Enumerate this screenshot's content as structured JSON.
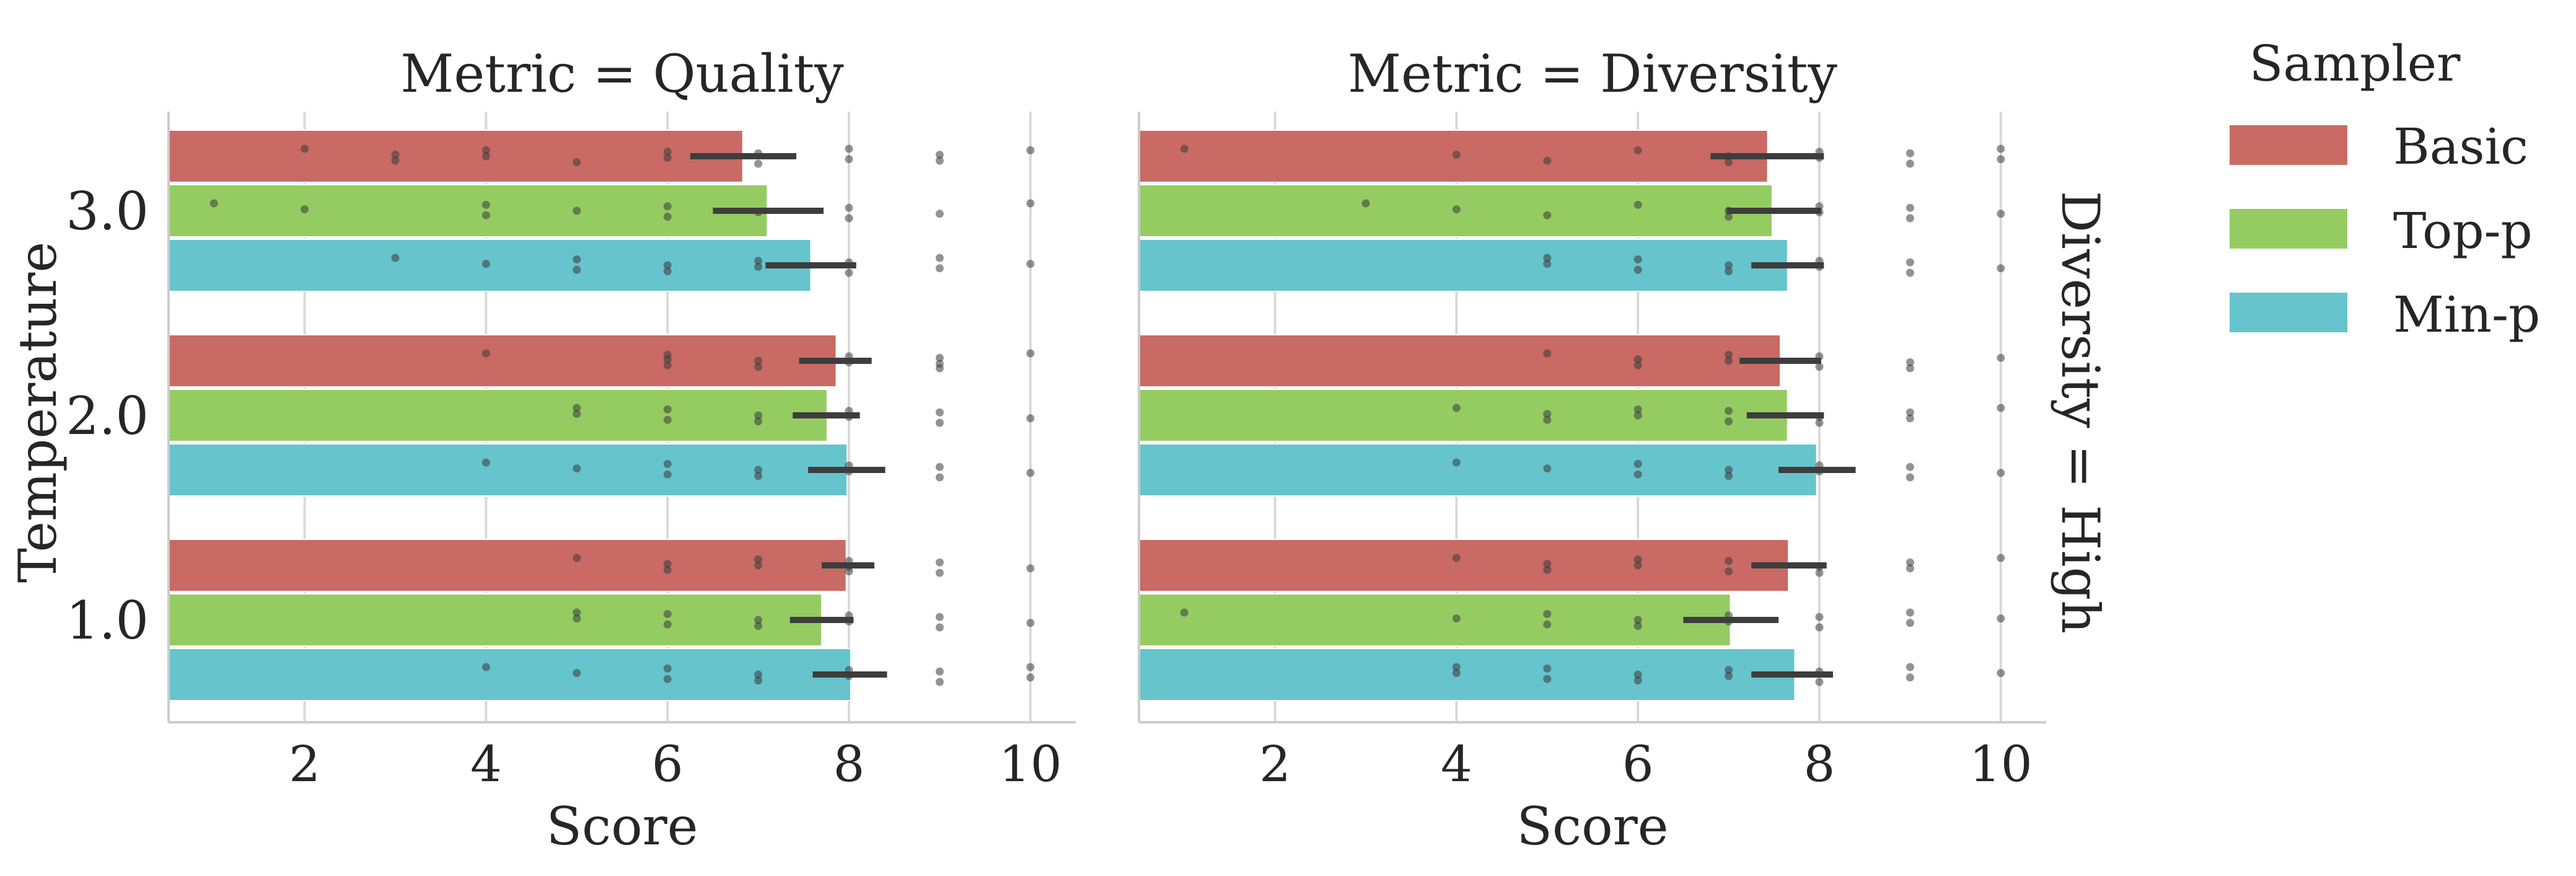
{
  "figure": {
    "row_facet_label": "Diversity = High",
    "legend": {
      "title": "Sampler",
      "entries": [
        "Basic",
        "Top-p",
        "Min-p"
      ],
      "placement": "right"
    },
    "colors": {
      "Basic": "#c96a64",
      "Top-p": "#94cc62",
      "Min-p": "#66c4cc"
    },
    "ylabel": "Temperature"
  },
  "chart_data": [
    {
      "type": "bar",
      "orientation": "horizontal",
      "title": "Metric = Quality",
      "xlabel": "Score",
      "ylabel": "Temperature",
      "xlim": [
        0.5,
        10.5
      ],
      "xticks": [
        "2",
        "4",
        "6",
        "8",
        "10"
      ],
      "categories": [
        "3.0",
        "2.0",
        "1.0"
      ],
      "grid": "vertical",
      "series": [
        {
          "name": "Basic",
          "values": [
            6.83,
            7.86,
            7.97
          ],
          "ci": [
            [
              6.25,
              7.42
            ],
            [
              7.45,
              8.25
            ],
            [
              7.7,
              8.28
            ]
          ],
          "points": [
            [
              2,
              3,
              3,
              4,
              4,
              5,
              6,
              6,
              7,
              7,
              8,
              8,
              9,
              9,
              10
            ],
            [
              4,
              6,
              6,
              6,
              7,
              7,
              8,
              8,
              9,
              9,
              9,
              10
            ],
            [
              5,
              6,
              6,
              7,
              7,
              8,
              8,
              8,
              9,
              9,
              10
            ]
          ]
        },
        {
          "name": "Top-p",
          "values": [
            7.1,
            7.76,
            7.7
          ],
          "ci": [
            [
              6.5,
              7.72
            ],
            [
              7.38,
              8.12
            ],
            [
              7.35,
              8.05
            ]
          ],
          "points": [
            [
              1,
              2,
              4,
              4,
              5,
              6,
              6,
              7,
              8,
              8,
              9,
              10
            ],
            [
              5,
              5,
              6,
              6,
              7,
              7,
              8,
              8,
              9,
              9,
              10
            ],
            [
              5,
              5,
              6,
              6,
              7,
              7,
              8,
              8,
              9,
              9,
              10
            ]
          ]
        },
        {
          "name": "Min-p",
          "values": [
            7.58,
            7.98,
            8.02
          ],
          "ci": [
            [
              7.08,
              8.08
            ],
            [
              7.55,
              8.4
            ],
            [
              7.6,
              8.42
            ]
          ],
          "points": [
            [
              3,
              4,
              5,
              5,
              6,
              6,
              7,
              7,
              8,
              8,
              9,
              9,
              10
            ],
            [
              4,
              5,
              6,
              6,
              7,
              7,
              8,
              8,
              9,
              9,
              10
            ],
            [
              4,
              5,
              6,
              6,
              7,
              7,
              8,
              8,
              9,
              9,
              10,
              10
            ]
          ]
        }
      ]
    },
    {
      "type": "bar",
      "orientation": "horizontal",
      "title": "Metric = Diversity",
      "xlabel": "Score",
      "ylabel": "",
      "xlim": [
        0.5,
        10.5
      ],
      "xticks": [
        "2",
        "4",
        "6",
        "8",
        "10"
      ],
      "categories": [
        "3.0",
        "2.0",
        "1.0"
      ],
      "grid": "vertical",
      "series": [
        {
          "name": "Basic",
          "values": [
            7.43,
            7.57,
            7.66
          ],
          "ci": [
            [
              6.8,
              8.05
            ],
            [
              7.12,
              8.02
            ],
            [
              7.25,
              8.08
            ]
          ],
          "points": [
            [
              1,
              4,
              5,
              6,
              7,
              7,
              8,
              8,
              9,
              9,
              10,
              10
            ],
            [
              5,
              6,
              6,
              7,
              7,
              8,
              8,
              9,
              9,
              10
            ],
            [
              4,
              5,
              5,
              6,
              6,
              7,
              7,
              8,
              8,
              9,
              9,
              10
            ]
          ]
        },
        {
          "name": "Top-p",
          "values": [
            7.48,
            7.65,
            7.02
          ],
          "ci": [
            [
              6.98,
              8.02
            ],
            [
              7.2,
              8.05
            ],
            [
              6.5,
              7.55
            ]
          ],
          "points": [
            [
              3,
              4,
              5,
              6,
              7,
              7,
              8,
              8,
              9,
              9,
              10
            ],
            [
              4,
              5,
              5,
              6,
              6,
              7,
              7,
              8,
              8,
              9,
              9,
              10
            ],
            [
              1,
              4,
              5,
              5,
              6,
              6,
              7,
              7,
              8,
              8,
              9,
              9,
              10
            ]
          ]
        },
        {
          "name": "Min-p",
          "values": [
            7.65,
            7.97,
            7.73
          ],
          "ci": [
            [
              7.25,
              8.05
            ],
            [
              7.55,
              8.4
            ],
            [
              7.25,
              8.15
            ]
          ],
          "points": [
            [
              5,
              5,
              6,
              6,
              7,
              7,
              8,
              8,
              9,
              9,
              10
            ],
            [
              4,
              5,
              6,
              6,
              7,
              7,
              8,
              8,
              9,
              9,
              10
            ],
            [
              4,
              4,
              5,
              5,
              6,
              6,
              7,
              7,
              8,
              8,
              9,
              9,
              10
            ]
          ]
        }
      ]
    }
  ]
}
